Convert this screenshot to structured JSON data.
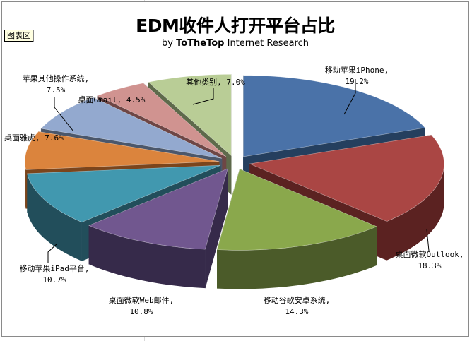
{
  "tooltip": {
    "label": "图表区"
  },
  "chart_data": {
    "type": "pie",
    "variant": "3d-exploded",
    "title": "EDM收件人打开平台占比",
    "subtitle": {
      "prefix": "by",
      "brand": "ToTheTop",
      "suffix": "Internet Research"
    },
    "legend": "none",
    "data_labels": "category, percentage",
    "slices": [
      {
        "name": "移动苹果iPhone",
        "value": 19.2,
        "label": "19.2%",
        "top": "#4a72a8",
        "side": "#253f5e"
      },
      {
        "name": "桌面微软Outlook",
        "value": 18.3,
        "label": "18.3%",
        "top": "#aa4644",
        "side": "#5b2221"
      },
      {
        "name": "移动谷歌安卓系统",
        "value": 14.3,
        "label": "14.3%",
        "top": "#8aa84c",
        "side": "#4b5b29"
      },
      {
        "name": "桌面微软Web邮件",
        "value": 10.8,
        "label": "10.8%",
        "top": "#71578f",
        "side": "#362a4a"
      },
      {
        "name": "移动苹果iPad平台",
        "value": 10.7,
        "label": "10.7%",
        "top": "#4198af",
        "side": "#224e5b"
      },
      {
        "name": "桌面雅虎",
        "value": 7.6,
        "label": "7.6%",
        "top": "#db843d",
        "side": "#7b451c"
      },
      {
        "name": "苹果其他操作系统",
        "value": 7.5,
        "label": "7.5%",
        "top": "#93a9cf",
        "side": "#4b576b"
      },
      {
        "name": "桌面Gmail",
        "value": 4.5,
        "label": "4.5%",
        "top": "#d09390",
        "side": "#6e4645"
      },
      {
        "name": "其他类别",
        "value": 7.0,
        "label": "7.0%",
        "top": "#b9cd96",
        "side": "#5e6a4b"
      }
    ]
  },
  "labels": [
    {
      "line1": "移动苹果iPhone,",
      "line2": "19.2%"
    },
    {
      "line1": "桌面微软Outlook,",
      "line2": "18.3%"
    },
    {
      "line1": "移动谷歌安卓系统,",
      "line2": "14.3%"
    },
    {
      "line1": "桌面微软Web邮件,",
      "line2": "10.8%"
    },
    {
      "line1": "移动苹果iPad平台,",
      "line2": "10.7%"
    },
    {
      "line1": "桌面雅虎, 7.6%",
      "line2": ""
    },
    {
      "line1": "苹果其他操作系统,",
      "line2": "7.5%"
    },
    {
      "line1": "桌面Gmail, 4.5%",
      "line2": ""
    },
    {
      "line1": "其他类别, 7.0%",
      "line2": ""
    }
  ]
}
